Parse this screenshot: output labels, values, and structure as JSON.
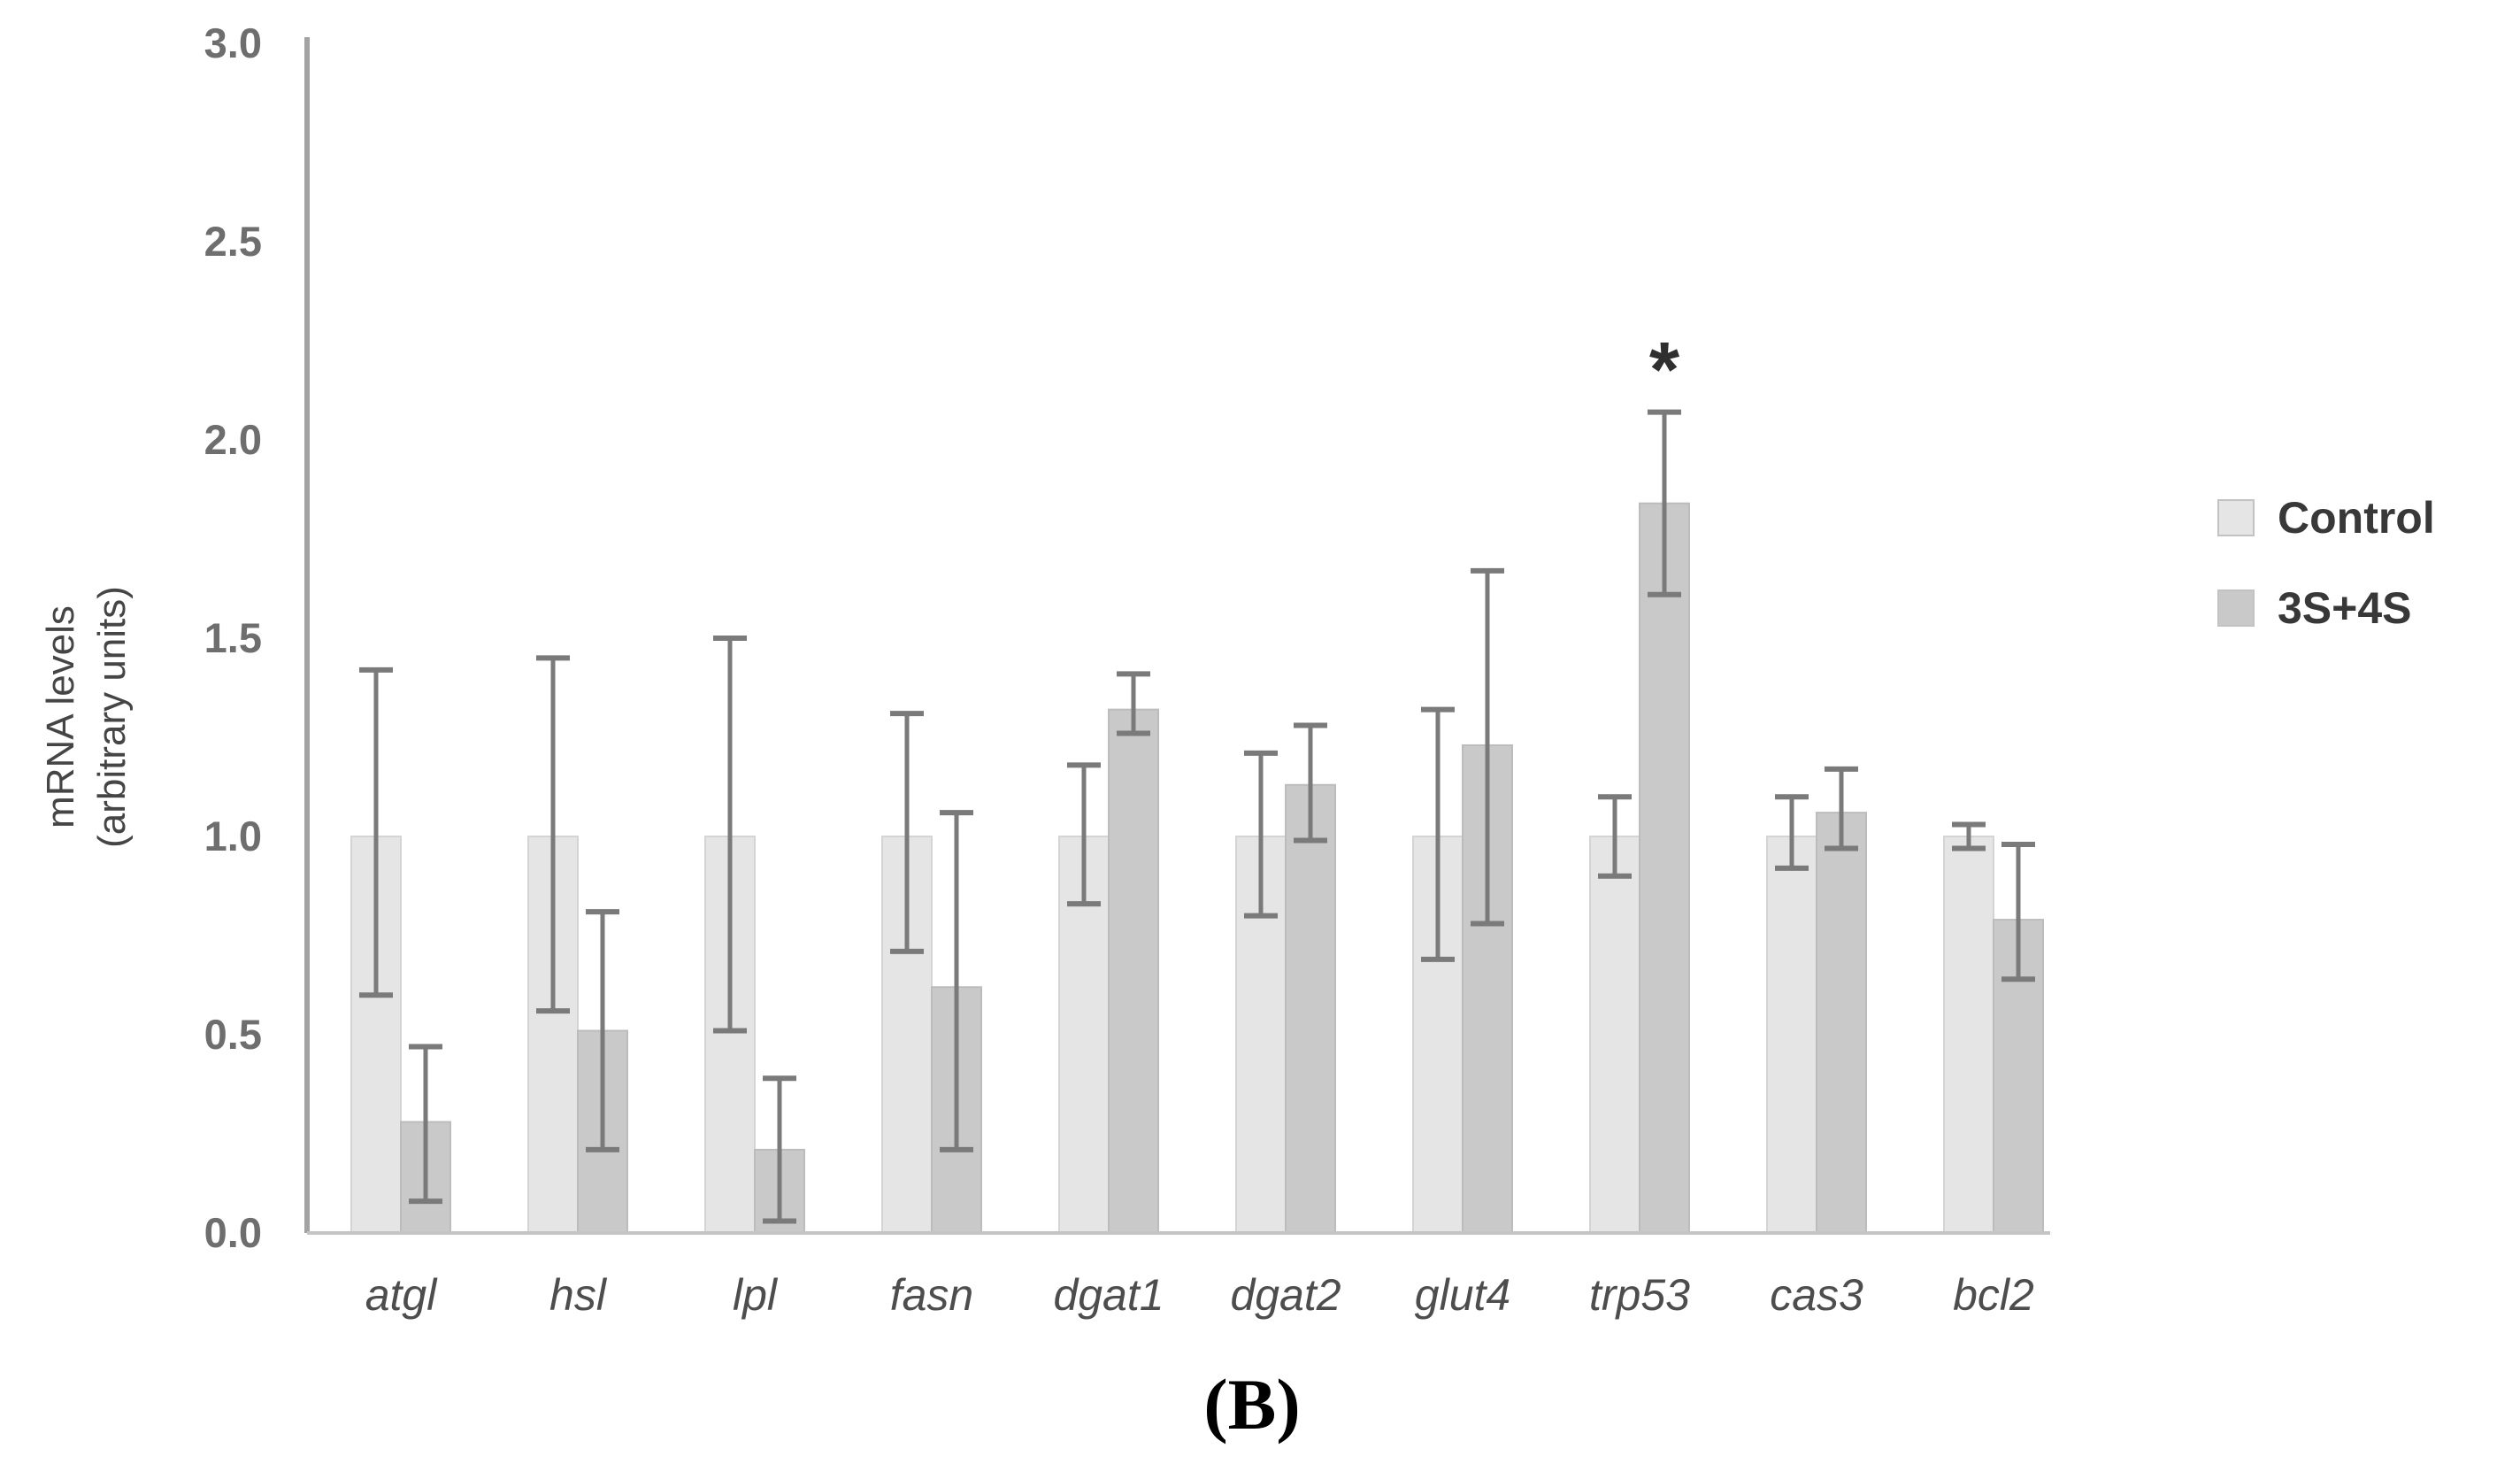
{
  "caption": "(B)",
  "y_axis": {
    "title_line1": "mRNA levels",
    "title_line2": "(arbitrary units)",
    "tick_labels": [
      "3.0",
      "2.5",
      "2.0",
      "1.5",
      "1.0",
      "0.5",
      "0.0"
    ]
  },
  "legend": {
    "items": [
      {
        "label": "Control",
        "swatch_color": "#e5e5e5"
      },
      {
        "label": "3S+4S",
        "swatch_color": "#c9c9c9"
      }
    ]
  },
  "chart_data": {
    "type": "bar",
    "title": "",
    "xlabel": "",
    "ylabel": "mRNA levels (arbitrary units)",
    "ylim": [
      0,
      3.0
    ],
    "ytick_step": 0.5,
    "grid": false,
    "legend_position": "right",
    "categories": [
      "atgl",
      "hsl",
      "lpl",
      "fasn",
      "dgat1",
      "dgat2",
      "glut4",
      "trp53",
      "cas3",
      "bcl2"
    ],
    "series": [
      {
        "name": "Control",
        "color": "#e5e5e5",
        "border": "#d4d4d4",
        "values": [
          1.0,
          1.0,
          1.0,
          1.0,
          1.0,
          1.0,
          1.0,
          1.0,
          1.0,
          1.0
        ],
        "err_low": [
          0.6,
          0.56,
          0.51,
          0.71,
          0.83,
          0.8,
          0.69,
          0.9,
          0.92,
          0.97
        ],
        "err_high": [
          1.42,
          1.45,
          1.5,
          1.31,
          1.18,
          1.21,
          1.32,
          1.1,
          1.1,
          1.03
        ]
      },
      {
        "name": "3S+4S",
        "color": "#c9c9c9",
        "border": "#bcbcbc",
        "values": [
          0.28,
          0.51,
          0.21,
          0.62,
          1.32,
          1.13,
          1.23,
          1.84,
          1.06,
          0.79
        ],
        "err_low": [
          0.08,
          0.21,
          0.03,
          0.21,
          1.26,
          0.99,
          0.78,
          1.61,
          0.97,
          0.64
        ],
        "err_high": [
          0.47,
          0.81,
          0.39,
          1.06,
          1.41,
          1.28,
          1.67,
          2.07,
          1.17,
          0.98
        ]
      }
    ],
    "significance": [
      {
        "category": "trp53",
        "series": "3S+4S",
        "marker": "*"
      }
    ],
    "error_bar_color": "#7a7a7a",
    "axis_line_color": "#a3a3a3",
    "baseline_color": "#c4c4c4",
    "tick_label_color": "#6e6e6e",
    "category_label_color": "#4d4d4d"
  }
}
